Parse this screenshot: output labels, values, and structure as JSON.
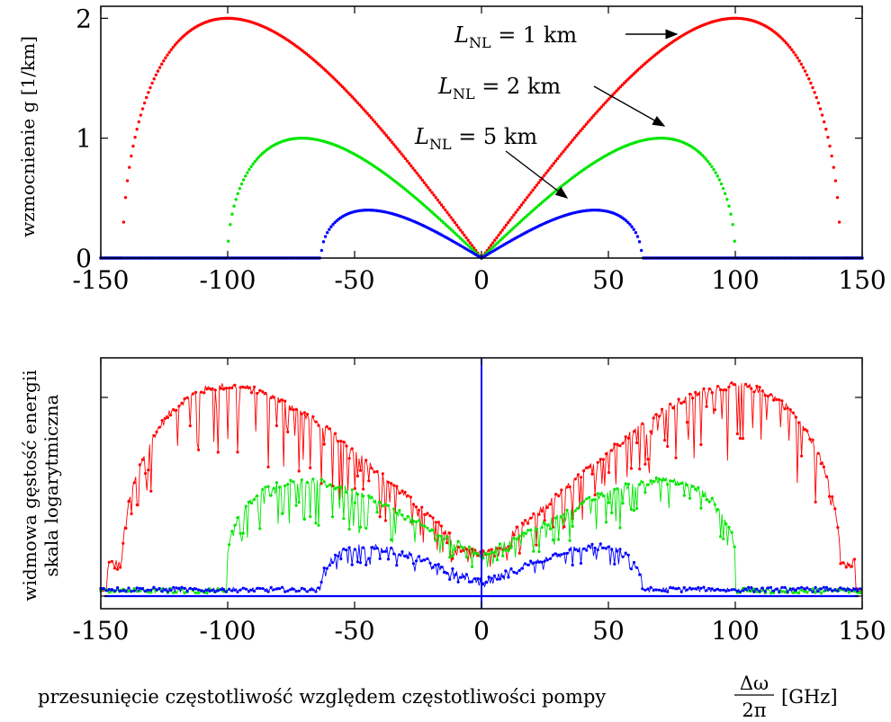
{
  "chart_data": [
    {
      "type": "scatter",
      "title": "",
      "xlabel": "",
      "ylabel": "wzmocnienie g [1/km]",
      "xlim": [
        -150,
        150
      ],
      "ylim": [
        0,
        2.1
      ],
      "xticks": [
        "-150",
        "-100",
        "-50",
        "0",
        "50",
        "100",
        "150"
      ],
      "yticks": [
        "0",
        "1",
        "2"
      ],
      "grid": false,
      "series": [
        {
          "name": "",
          "color": "#ff0000",
          "L_NL_km": 1,
          "peak_gain": 2.0,
          "peak_x": 100,
          "cutoff_x": 141.4
        },
        {
          "name": "",
          "color": "#00e600",
          "L_NL_km": 2,
          "peak_gain": 1.0,
          "peak_x": 70.7,
          "cutoff_x": 100
        },
        {
          "name": "",
          "color": "#0000ff",
          "L_NL_km": 5,
          "peak_gain": 0.4,
          "peak_x": 44.7,
          "cutoff_x": 63.2
        }
      ],
      "annotations": [
        {
          "prefix": "L",
          "sub": "NL",
          "rest": " = 1 km",
          "points_to": {
            "x": 100,
            "y": 2.0
          }
        },
        {
          "prefix": "L",
          "sub": "NL",
          "rest": " = 2 km",
          "points_to": {
            "x": 72,
            "y": 1.1
          }
        },
        {
          "prefix": "L",
          "sub": "NL",
          "rest": " = 5 km",
          "points_to": {
            "x": 35,
            "y": 0.48
          }
        }
      ]
    },
    {
      "type": "line",
      "title": "",
      "ylabel_line1": "widmowa gęstość energii",
      "ylabel_line2": "skala logarytmiczna",
      "xlabel": "przesunięcie częstotliwość względem częstotliwości pompy",
      "xlabel_frac_num": "Δω",
      "xlabel_frac_den": "2π",
      "xlabel_unit": "[GHz]",
      "xlim": [
        -150,
        150
      ],
      "ylim": [
        0,
        1
      ],
      "log_scale_y": true,
      "xticks": [
        "-150",
        "-100",
        "-50",
        "0",
        "50",
        "100",
        "150"
      ],
      "grid": false,
      "series": [
        {
          "name": "",
          "color": "#ff0000",
          "peak_level": 0.88,
          "floor_level": 0.17,
          "peak_x": 100,
          "cutoff_x": 141.4
        },
        {
          "name": "",
          "color": "#00e600",
          "peak_level": 0.48,
          "floor_level": 0.17,
          "peak_x": 70.7,
          "cutoff_x": 100
        },
        {
          "name": "",
          "color": "#0000ff",
          "peak_level": 0.2,
          "floor_level": 0.05,
          "peak_x": 44.7,
          "cutoff_x": 63.2
        }
      ]
    }
  ]
}
